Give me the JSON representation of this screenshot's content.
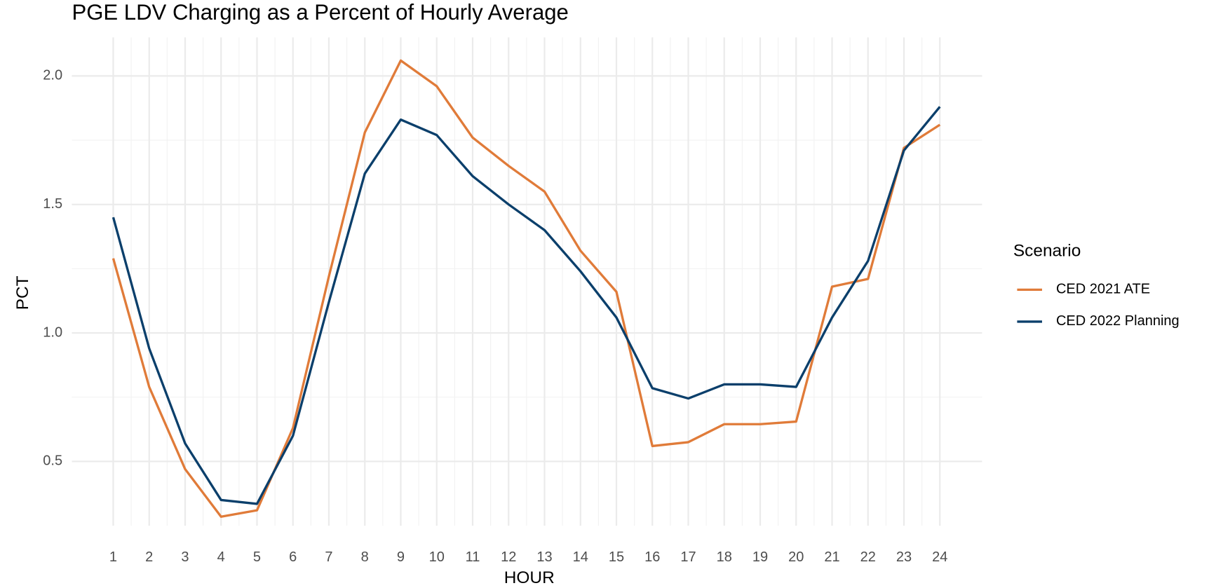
{
  "chart_data": {
    "type": "line",
    "title": "PGE LDV Charging as a Percent of Hourly Average",
    "x_label": "HOUR",
    "y_label": "PCT",
    "legend_title": "Scenario",
    "legend_position": "right",
    "grid": true,
    "x": [
      1,
      2,
      3,
      4,
      5,
      6,
      7,
      8,
      9,
      10,
      11,
      12,
      13,
      14,
      15,
      16,
      17,
      18,
      19,
      20,
      21,
      22,
      23,
      24
    ],
    "xlim": [
      0,
      25
    ],
    "xticks": [
      1,
      2,
      3,
      4,
      5,
      6,
      7,
      8,
      9,
      10,
      11,
      12,
      13,
      14,
      15,
      16,
      17,
      18,
      19,
      20,
      21,
      22,
      23,
      24
    ],
    "ylim": [
      0.25,
      2.15
    ],
    "yticks": [
      {
        "value": 0.5,
        "label": "0.5"
      },
      {
        "value": 1,
        "label": "1.0"
      },
      {
        "value": 1.5,
        "label": "1.5"
      },
      {
        "value": 2,
        "label": "2.0"
      }
    ],
    "series": [
      {
        "name": "CED 2021 ATE",
        "color": "#e07b39",
        "values": [
          1.29,
          0.79,
          0.47,
          0.285,
          0.31,
          0.63,
          1.22,
          1.78,
          2.06,
          1.96,
          1.76,
          1.65,
          1.55,
          1.32,
          1.16,
          0.56,
          0.575,
          0.645,
          0.645,
          0.655,
          1.18,
          1.21,
          1.72,
          1.81
        ]
      },
      {
        "name": "CED 2022 Planning",
        "color": "#0b3f6b",
        "values": [
          1.45,
          0.94,
          0.57,
          0.35,
          0.335,
          0.6,
          1.12,
          1.62,
          1.83,
          1.77,
          1.61,
          1.5,
          1.4,
          1.24,
          1.06,
          0.785,
          0.745,
          0.8,
          0.8,
          0.79,
          1.06,
          1.28,
          1.71,
          1.88
        ]
      }
    ]
  }
}
